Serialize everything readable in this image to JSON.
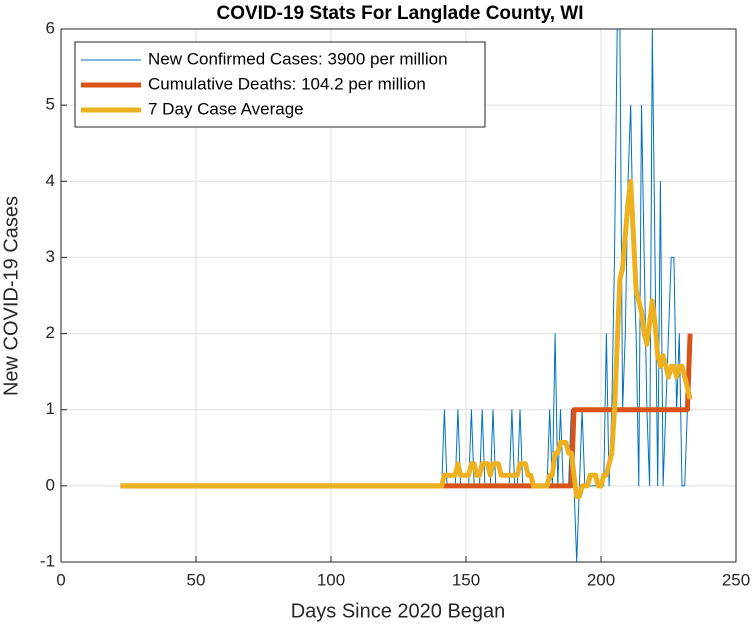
{
  "chart_data": {
    "type": "line",
    "title": "COVID-19 Stats For Langlade County, WI",
    "x_label": "Days Since 2020 Began",
    "y_label": "New COVID-19 Cases",
    "x": [
      22,
      140,
      141,
      142,
      143,
      144,
      145,
      146,
      147,
      148,
      149,
      150,
      151,
      152,
      153,
      154,
      155,
      156,
      157,
      158,
      159,
      160,
      161,
      162,
      163,
      164,
      165,
      166,
      167,
      168,
      169,
      170,
      171,
      172,
      173,
      174,
      175,
      176,
      177,
      178,
      179,
      180,
      181,
      182,
      183,
      184,
      185,
      186,
      187,
      188,
      189,
      190,
      191,
      192,
      193,
      194,
      195,
      196,
      197,
      198,
      199,
      200,
      201,
      202,
      203,
      204,
      205,
      206,
      207,
      208,
      209,
      210,
      211,
      212,
      213,
      214,
      215,
      216,
      217,
      218,
      219,
      220,
      221,
      222,
      223,
      224,
      225,
      226,
      227,
      228,
      229,
      230,
      231,
      232,
      233
    ],
    "series": [
      {
        "name": "New Confirmed Cases: 3900 per million",
        "color": "#0072BD",
        "values": [
          0,
          0,
          0,
          1,
          0,
          0,
          0,
          0,
          1,
          0,
          0,
          0,
          0,
          1,
          0,
          0,
          0,
          1,
          0,
          0,
          0,
          1,
          0,
          0,
          0,
          0,
          0,
          0,
          1,
          0,
          0,
          1,
          0,
          0,
          0,
          0,
          0,
          0,
          0,
          0,
          0,
          0,
          1,
          0,
          2,
          0,
          1,
          0,
          0,
          0,
          1,
          0,
          -1,
          0,
          1,
          0,
          0,
          0,
          0,
          0,
          0,
          0,
          0,
          2,
          0,
          1,
          3,
          6,
          6,
          1,
          2,
          4,
          5,
          3,
          2,
          0,
          5,
          3,
          1,
          0,
          6,
          3,
          0,
          4,
          0,
          1,
          2,
          3,
          3,
          1,
          2,
          0,
          0,
          1,
          1
        ]
      },
      {
        "name": "Cumulative Deaths: 104.2 per million",
        "color": "#D95319",
        "values": [
          0,
          0,
          0,
          0,
          0,
          0,
          0,
          0,
          0,
          0,
          0,
          0,
          0,
          0,
          0,
          0,
          0,
          0,
          0,
          0,
          0,
          0,
          0,
          0,
          0,
          0,
          0,
          0,
          0,
          0,
          0,
          0,
          0,
          0,
          0,
          0,
          0,
          0,
          0,
          0,
          0,
          0,
          0,
          0,
          0,
          0,
          0,
          0,
          0,
          0,
          0,
          1,
          1,
          1,
          1,
          1,
          1,
          1,
          1,
          1,
          1,
          1,
          1,
          1,
          1,
          1,
          1,
          1,
          1,
          1,
          1,
          1,
          1,
          1,
          1,
          1,
          1,
          1,
          1,
          1,
          1,
          1,
          1,
          1,
          1,
          1,
          1,
          1,
          1,
          1,
          1,
          1,
          1,
          1,
          2
        ]
      },
      {
        "name": "7 Day Case Average",
        "color": "#EDB120",
        "values": [
          0,
          0,
          0,
          0.14,
          0.14,
          0.14,
          0.14,
          0.14,
          0.29,
          0.14,
          0.14,
          0.14,
          0.14,
          0.29,
          0.29,
          0.14,
          0.14,
          0.29,
          0.29,
          0.29,
          0.14,
          0.29,
          0.29,
          0.29,
          0.14,
          0.14,
          0.14,
          0.14,
          0.14,
          0.14,
          0.14,
          0.29,
          0.29,
          0.29,
          0.14,
          0.14,
          0,
          0,
          0,
          0,
          0,
          0,
          0.14,
          0.14,
          0.43,
          0.43,
          0.57,
          0.57,
          0.57,
          0.43,
          0.43,
          0.14,
          -0.14,
          -0.14,
          0,
          0,
          0,
          0.14,
          0.14,
          0.14,
          0,
          0,
          0.14,
          0.14,
          0.29,
          0.43,
          1,
          1.86,
          2.71,
          2.86,
          3.29,
          3.71,
          4,
          3.29,
          2.57,
          2.43,
          2.29,
          2,
          1.86,
          2.14,
          2.43,
          2.14,
          1.71,
          1.57,
          1.71,
          1.57,
          1.43,
          1.57,
          1.57,
          1.43,
          1.57,
          1.57,
          1.43,
          1.29,
          1.14
        ]
      }
    ],
    "xlim": [
      0,
      250
    ],
    "xticks": [
      0,
      50,
      100,
      150,
      200,
      250
    ],
    "ylim": [
      -1,
      6
    ],
    "yticks": [
      -1,
      0,
      1,
      2,
      3,
      4,
      5,
      6
    ],
    "grid": true,
    "legend": "upper-left"
  }
}
